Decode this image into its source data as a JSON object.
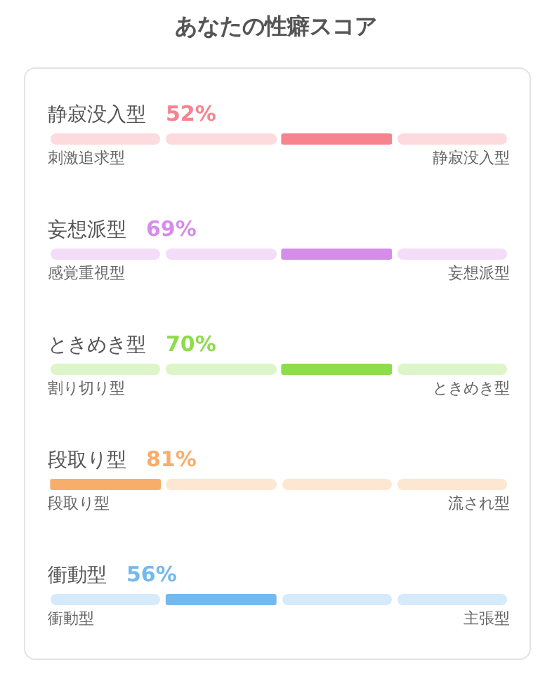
{
  "chart_data": {
    "type": "other",
    "title": "あなたの性癖スコア",
    "categories": [
      "静寂没入型",
      "妄想派型",
      "ときめき型",
      "段取り型",
      "衝動型"
    ],
    "values": [
      52,
      69,
      70,
      81,
      56
    ],
    "value_labels": [
      "52%",
      "69%",
      "70%",
      "81%",
      "56%"
    ],
    "colors": [
      "#f7838f",
      "#d68de9",
      "#8ddc4b",
      "#f8ae6b",
      "#72b9ef"
    ],
    "y_categories": [
      "刺激追求型",
      "感覚重視型",
      "割り切り型",
      "段取り型",
      "衝動型"
    ],
    "y2_categories": [
      "静寂没入型",
      "妄想派型",
      "ときめき型",
      "流され型",
      "主張型"
    ]
  }
}
